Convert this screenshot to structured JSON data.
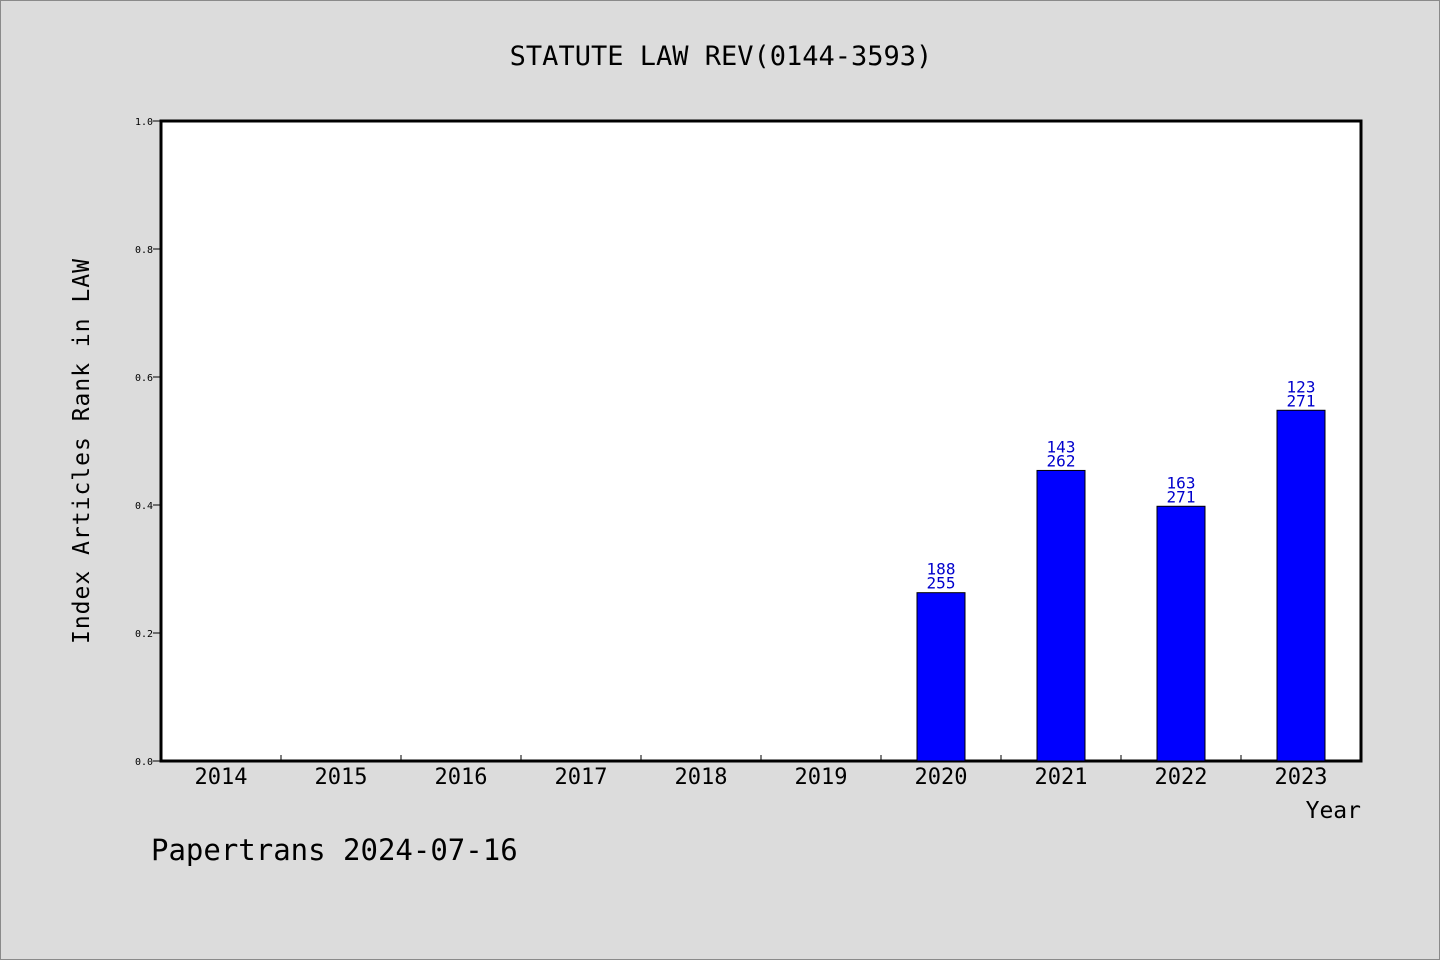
{
  "chart_data": {
    "type": "bar",
    "title": "STATUTE LAW REV(0144-3593)",
    "xlabel": "Year",
    "ylabel": "Index Articles Rank in LAW",
    "ylim": [
      0,
      1.0
    ],
    "yticks": [
      "0.0",
      "0.2",
      "0.4",
      "0.6",
      "0.8",
      "1.0"
    ],
    "categories": [
      "2014",
      "2015",
      "2016",
      "2017",
      "2018",
      "2019",
      "2020",
      "2021",
      "2022",
      "2023"
    ],
    "values": [
      null,
      null,
      null,
      null,
      null,
      null,
      0.263,
      0.454,
      0.398,
      0.548
    ],
    "labels_top": [
      null,
      null,
      null,
      null,
      null,
      null,
      "188",
      "143",
      "163",
      "123"
    ],
    "labels_bottom": [
      null,
      null,
      null,
      null,
      null,
      null,
      "255",
      "262",
      "271",
      "271"
    ],
    "bar_color": "#0000ff",
    "label_color": "#0000cc",
    "grid": false,
    "legend": "none"
  },
  "footer": "Papertrans 2024-07-16"
}
